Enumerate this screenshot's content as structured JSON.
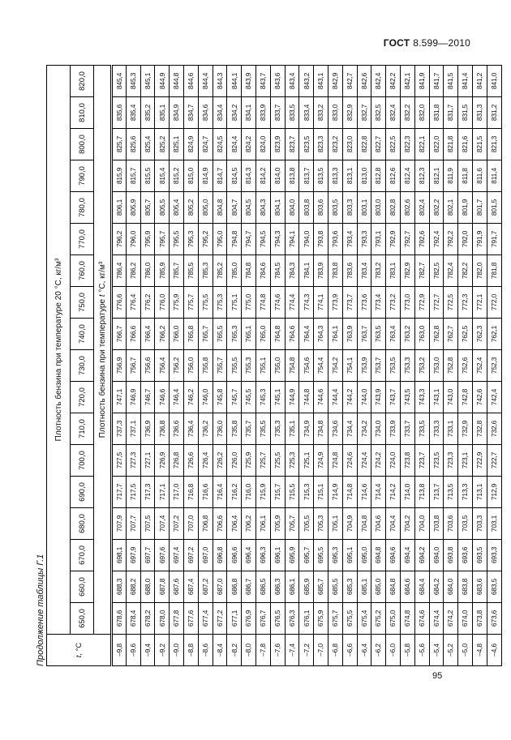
{
  "page": {
    "standard_org": "ГОСТ",
    "standard_number": "8.599—2010",
    "page_number": "95",
    "caption": "Продолжение таблицы Г.1"
  },
  "table": {
    "corner_var": "t",
    "corner_suffix": ", °С",
    "top_span_header": "Плотность бензина при температуре 20 °С, кг/м³",
    "mid_prefix": "Плотность бензина при температуре ",
    "mid_var": "t",
    "mid_suffix": " °С, кг/м³",
    "density_headers": [
      "650,0",
      "660,0",
      "670,0",
      "680,0",
      "690,0",
      "700,0",
      "710,0",
      "720,0",
      "730,0",
      "740,0",
      "750,0",
      "760,0",
      "770,0",
      "780,0",
      "790,0",
      "800,0",
      "810,0",
      "820,0"
    ],
    "temperatures": [
      "–9,8",
      "–9,6",
      "–9,4",
      "–9,2",
      "–9,0",
      "–8,8",
      "–8,6",
      "–8,4",
      "–8,2",
      "–8,0",
      "–7,8",
      "–7,6",
      "–7,4",
      "–7,2",
      "–7,0",
      "–6,8",
      "–6,6",
      "–6,4",
      "–6,2",
      "–6,0",
      "–5,8",
      "–5,6",
      "–5,4",
      "–5,2",
      "–5,0",
      "–4,8",
      "–4,6"
    ],
    "data_by_density": {
      "650,0": [
        "678,6",
        "678,4",
        "678,2",
        "678,0",
        "677,8",
        "677,6",
        "677,4",
        "677,2",
        "677,1",
        "676,9",
        "676,7",
        "676,5",
        "676,3",
        "676,1",
        "675,9",
        "675,7",
        "675,5",
        "675,4",
        "675,2",
        "675,0",
        "674,8",
        "674,6",
        "674,4",
        "674,2",
        "674,0",
        "673,8",
        "673,6"
      ],
      "660,0": [
        "688,3",
        "688,2",
        "688,0",
        "687,8",
        "687,6",
        "687,4",
        "687,2",
        "687,0",
        "686,8",
        "686,7",
        "686,5",
        "686,3",
        "686,1",
        "685,9",
        "685,7",
        "685,5",
        "685,3",
        "685,1",
        "685,0",
        "684,8",
        "684,6",
        "684,4",
        "684,2",
        "684,0",
        "683,8",
        "683,6",
        "683,5"
      ],
      "670,0": [
        "698,1",
        "697,9",
        "697,7",
        "697,6",
        "697,4",
        "697,2",
        "697,0",
        "696,8",
        "696,6",
        "696,4",
        "696,3",
        "696,1",
        "695,9",
        "695,7",
        "695,5",
        "695,3",
        "695,1",
        "695,0",
        "694,8",
        "694,6",
        "694,4",
        "694,2",
        "694,0",
        "693,8",
        "693,6",
        "693,5",
        "693,3"
      ],
      "680,0": [
        "707,9",
        "707,7",
        "707,5",
        "707,4",
        "707,2",
        "707,0",
        "706,8",
        "706,6",
        "706,4",
        "706,2",
        "706,1",
        "705,9",
        "705,7",
        "705,5",
        "705,3",
        "705,1",
        "704,9",
        "704,8",
        "704,6",
        "704,4",
        "704,2",
        "704,0",
        "703,8",
        "703,6",
        "703,5",
        "703,3",
        "703,1"
      ],
      "690,0": [
        "717,7",
        "717,5",
        "717,3",
        "717,1",
        "717,0",
        "716,8",
        "716,6",
        "716,4",
        "716,2",
        "716,0",
        "715,9",
        "715,7",
        "715,5",
        "715,3",
        "715,1",
        "714,9",
        "714,8",
        "714,6",
        "714,4",
        "714,2",
        "714,0",
        "713,8",
        "713,7",
        "713,5",
        "713,3",
        "713,1",
        "712,9"
      ],
      "700,0": [
        "727,5",
        "727,3",
        "727,1",
        "726,9",
        "726,8",
        "726,6",
        "726,4",
        "726,2",
        "726,0",
        "725,9",
        "725,7",
        "725,5",
        "725,3",
        "725,1",
        "724,9",
        "724,8",
        "724,6",
        "724,4",
        "724,2",
        "724,0",
        "723,8",
        "723,7",
        "723,5",
        "723,3",
        "723,1",
        "722,9",
        "722,7"
      ],
      "710,0": [
        "737,3",
        "737,1",
        "736,9",
        "736,8",
        "736,6",
        "736,4",
        "736,2",
        "736,0",
        "735,8",
        "735,7",
        "735,5",
        "735,3",
        "735,1",
        "734,9",
        "734,8",
        "734,6",
        "734,4",
        "734,2",
        "734,0",
        "733,9",
        "733,7",
        "733,5",
        "733,3",
        "733,1",
        "732,9",
        "732,8",
        "732,6"
      ],
      "720,0": [
        "747,1",
        "746,9",
        "746,7",
        "746,6",
        "746,4",
        "746,2",
        "746,0",
        "745,8",
        "745,7",
        "745,5",
        "745,3",
        "745,1",
        "744,9",
        "744,8",
        "744,6",
        "744,4",
        "744,2",
        "744,0",
        "743,9",
        "743,7",
        "743,5",
        "743,3",
        "743,1",
        "743,0",
        "742,8",
        "742,6",
        "742,4"
      ],
      "730,0": [
        "756,9",
        "756,7",
        "756,6",
        "756,4",
        "756,2",
        "756,0",
        "755,8",
        "755,7",
        "755,5",
        "755,3",
        "755,1",
        "755,0",
        "754,8",
        "754,6",
        "754,4",
        "754,2",
        "754,1",
        "753,9",
        "753,7",
        "753,5",
        "753,3",
        "753,2",
        "753,0",
        "752,8",
        "752,6",
        "752,4",
        "752,3"
      ],
      "740,0": [
        "766,7",
        "766,6",
        "766,4",
        "766,2",
        "766,0",
        "765,8",
        "765,7",
        "765,5",
        "765,3",
        "765,1",
        "765,0",
        "764,8",
        "764,6",
        "764,4",
        "764,3",
        "764,1",
        "763,9",
        "763,7",
        "763,5",
        "763,4",
        "763,2",
        "763,0",
        "762,8",
        "762,7",
        "762,5",
        "762,3",
        "762,1"
      ],
      "750,0": [
        "776,6",
        "776,4",
        "776,2",
        "776,0",
        "775,9",
        "775,7",
        "775,5",
        "775,3",
        "775,1",
        "775,0",
        "774,8",
        "774,6",
        "774,4",
        "774,3",
        "774,1",
        "773,9",
        "773,7",
        "773,6",
        "773,4",
        "773,2",
        "773,0",
        "772,9",
        "772,7",
        "772,5",
        "772,3",
        "772,1",
        "772,0"
      ],
      "760,0": [
        "786,4",
        "786,2",
        "786,0",
        "785,9",
        "785,7",
        "785,5",
        "785,3",
        "785,2",
        "785,0",
        "784,8",
        "784,6",
        "784,5",
        "784,3",
        "784,1",
        "783,9",
        "783,8",
        "783,6",
        "783,4",
        "783,2",
        "783,1",
        "782,9",
        "782,7",
        "782,5",
        "782,4",
        "782,2",
        "782,0",
        "781,8"
      ],
      "770,0": [
        "796,2",
        "796,0",
        "795,9",
        "795,7",
        "795,5",
        "795,3",
        "795,2",
        "795,0",
        "794,8",
        "794,7",
        "794,5",
        "794,3",
        "794,1",
        "794,0",
        "793,8",
        "793,6",
        "793,4",
        "793,3",
        "793,1",
        "792,9",
        "792,7",
        "792,6",
        "792,4",
        "792,2",
        "792,0",
        "791,9",
        "791,7"
      ],
      "780,0": [
        "806,1",
        "805,9",
        "805,7",
        "805,5",
        "805,4",
        "805,2",
        "805,0",
        "804,8",
        "804,7",
        "804,5",
        "804,3",
        "804,1",
        "804,0",
        "803,8",
        "803,6",
        "803,5",
        "803,3",
        "803,1",
        "803,0",
        "802,8",
        "802,6",
        "802,4",
        "802,2",
        "802,1",
        "801,9",
        "801,7",
        "801,5"
      ],
      "790,0": [
        "815,9",
        "815,7",
        "815,5",
        "815,4",
        "815,2",
        "815,0",
        "814,9",
        "814,7",
        "814,5",
        "814,3",
        "814,2",
        "814,0",
        "813,8",
        "813,7",
        "813,5",
        "813,3",
        "813,1",
        "813,0",
        "812,8",
        "812,6",
        "812,4",
        "812,3",
        "812,1",
        "811,9",
        "811,8",
        "811,6",
        "811,4"
      ],
      "800,0": [
        "825,7",
        "825,6",
        "825,4",
        "825,2",
        "825,1",
        "824,9",
        "824,7",
        "824,5",
        "824,4",
        "824,2",
        "824,0",
        "823,9",
        "823,7",
        "823,5",
        "823,3",
        "823,2",
        "823,0",
        "822,8",
        "822,7",
        "822,5",
        "822,3",
        "822,1",
        "822,0",
        "821,8",
        "821,6",
        "821,5",
        "821,3"
      ],
      "810,0": [
        "835,6",
        "835,4",
        "835,2",
        "835,1",
        "834,9",
        "834,7",
        "834,6",
        "834,4",
        "834,2",
        "834,1",
        "833,9",
        "833,7",
        "833,5",
        "833,4",
        "833,2",
        "833,0",
        "832,9",
        "832,7",
        "832,5",
        "832,4",
        "832,2",
        "832,0",
        "831,8",
        "831,7",
        "831,5",
        "831,3",
        "831,2"
      ],
      "820,0": [
        "845,4",
        "845,3",
        "845,1",
        "844,9",
        "844,8",
        "844,6",
        "844,4",
        "844,3",
        "844,1",
        "843,9",
        "843,7",
        "843,6",
        "843,4",
        "843,2",
        "843,1",
        "842,9",
        "842,7",
        "842,6",
        "842,4",
        "842,2",
        "842,1",
        "841,9",
        "841,7",
        "841,5",
        "841,4",
        "841,2",
        "841,0"
      ]
    }
  }
}
